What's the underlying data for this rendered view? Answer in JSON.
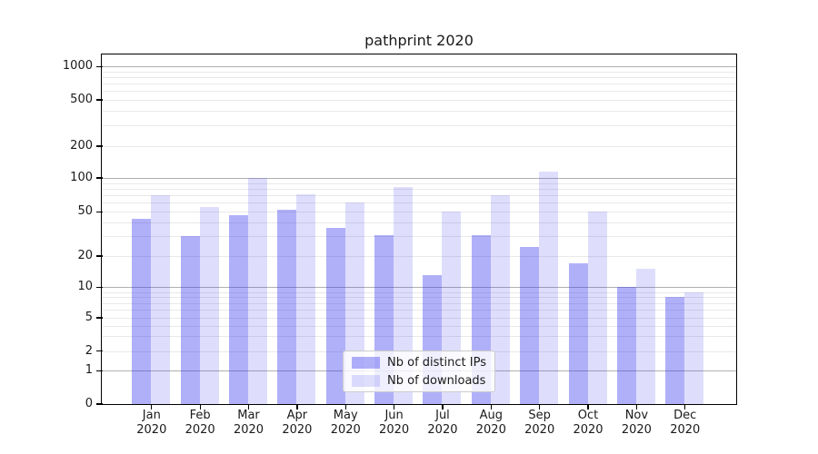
{
  "chart_data": {
    "type": "bar",
    "title": "pathprint 2020",
    "categories": [
      "Jan",
      "Feb",
      "Mar",
      "Apr",
      "May",
      "Jun",
      "Jul",
      "Aug",
      "Sep",
      "Oct",
      "Nov",
      "Dec"
    ],
    "category_year": "2020",
    "series": [
      {
        "name": "Nb of distinct IPs",
        "color": "rgba(47,47,239,0.38)",
        "color_hex_on_white": "#abaaf6",
        "values": [
          43,
          30,
          47,
          52,
          36,
          31,
          13,
          31,
          24,
          17,
          10,
          8
        ]
      },
      {
        "name": "Nb of downloads",
        "color": "rgba(47,47,239,0.16)",
        "color_hex_on_white": "#dcdcfb",
        "values": [
          70,
          55,
          100,
          71,
          60,
          83,
          50,
          70,
          115,
          50,
          15,
          9
        ]
      }
    ],
    "yscale": "symlog",
    "ytick_labels": [
      "0",
      "1",
      "2",
      "5",
      "10",
      "20",
      "50",
      "100",
      "200",
      "500",
      "1000"
    ],
    "ytick_values": [
      0,
      1,
      2,
      5,
      10,
      20,
      50,
      100,
      200,
      500,
      1000
    ],
    "ylim": [
      0,
      1300
    ],
    "xlabel": "",
    "ylabel": "",
    "grid": "horizontal, major and minor",
    "legend_position": "lower center",
    "colors": {
      "background": "#ffffff",
      "axis": "#000000",
      "text": "#1a1a1a",
      "major_grid": "#b0b0b0",
      "minor_grid": "#e9e9e9",
      "legend_border": "#cccccc"
    }
  }
}
